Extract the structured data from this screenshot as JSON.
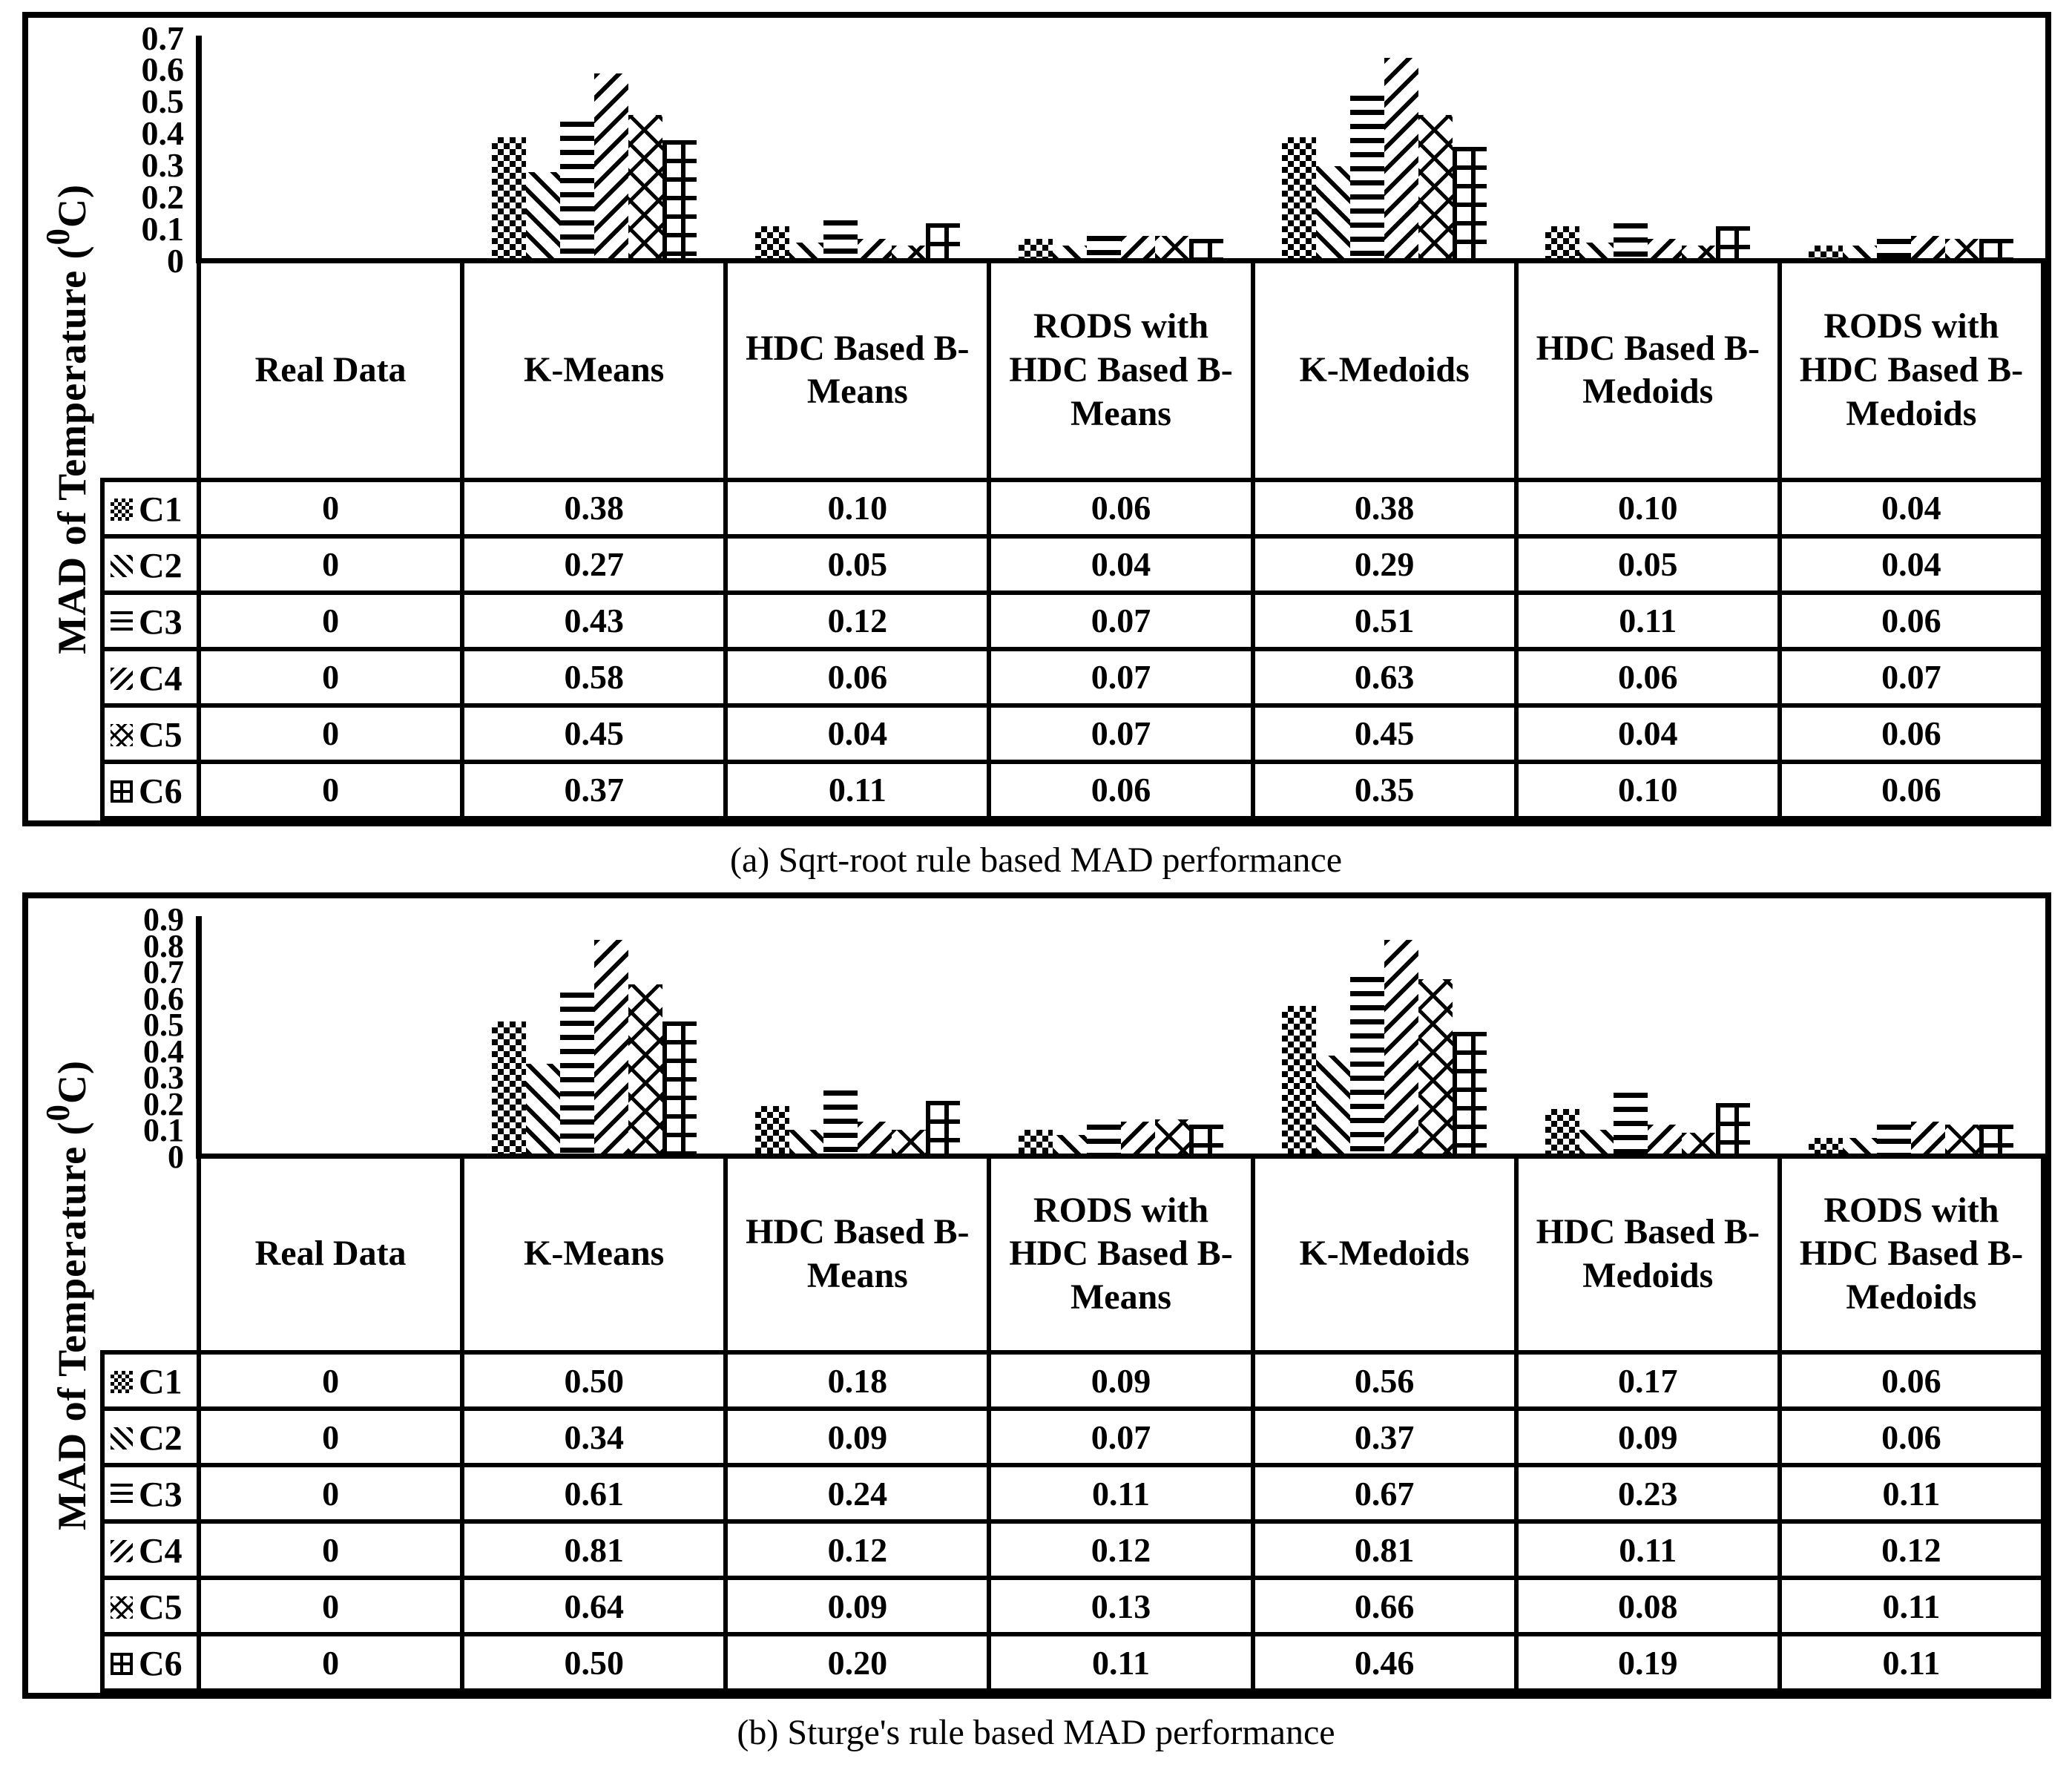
{
  "colors": {
    "ink": "#000000",
    "background": "#ffffff"
  },
  "chart_data": [
    {
      "id": "a",
      "type": "bar",
      "caption": "(a) Sqrt-root rule based MAD performance",
      "ylabel": {
        "pre": "MAD of Temperature (",
        "sup": "0",
        "post": "C)"
      },
      "ylim": [
        0,
        0.7
      ],
      "yticks": [
        "0.7",
        "0.6",
        "0.5",
        "0.4",
        "0.3",
        "0.2",
        "0.1",
        "0"
      ],
      "grid": false,
      "legend_position": "table-row-headers",
      "categories": [
        "Real Data",
        "K-Means",
        "HDC Based B-Means",
        "RODS with HDC Based B-Means",
        "K-Medoids",
        "HDC Based B-Medoids",
        "RODS with HDC Based B-Medoids"
      ],
      "series": [
        {
          "name": "C1",
          "pattern": "checkerboard",
          "values": [
            "0",
            "0.38",
            "0.10",
            "0.06",
            "0.38",
            "0.10",
            "0.04"
          ]
        },
        {
          "name": "C2",
          "pattern": "diagonal-down",
          "values": [
            "0",
            "0.27",
            "0.05",
            "0.04",
            "0.29",
            "0.05",
            "0.04"
          ]
        },
        {
          "name": "C3",
          "pattern": "horizontal-lines",
          "values": [
            "0",
            "0.43",
            "0.12",
            "0.07",
            "0.51",
            "0.11",
            "0.06"
          ]
        },
        {
          "name": "C4",
          "pattern": "diagonal-up",
          "values": [
            "0",
            "0.58",
            "0.06",
            "0.07",
            "0.63",
            "0.06",
            "0.07"
          ]
        },
        {
          "name": "C5",
          "pattern": "diamond-lattice",
          "values": [
            "0",
            "0.45",
            "0.04",
            "0.07",
            "0.45",
            "0.04",
            "0.06"
          ]
        },
        {
          "name": "C6",
          "pattern": "grid",
          "values": [
            "0",
            "0.37",
            "0.11",
            "0.06",
            "0.35",
            "0.10",
            "0.06"
          ]
        }
      ]
    },
    {
      "id": "b",
      "type": "bar",
      "caption": "(b) Sturge's rule based MAD performance",
      "ylabel": {
        "pre": "MAD of Temperature (",
        "sup": "0",
        "post": "C)"
      },
      "ylim": [
        0,
        0.9
      ],
      "yticks": [
        "0.9",
        "0.8",
        "0.7",
        "0.6",
        "0.5",
        "0.4",
        "0.3",
        "0.2",
        "0.1",
        "0"
      ],
      "grid": false,
      "legend_position": "table-row-headers",
      "categories": [
        "Real Data",
        "K-Means",
        "HDC Based B-Means",
        "RODS with HDC Based B-Means",
        "K-Medoids",
        "HDC Based B-Medoids",
        "RODS with HDC Based B-Medoids"
      ],
      "series": [
        {
          "name": "C1",
          "pattern": "checkerboard",
          "values": [
            "0",
            "0.50",
            "0.18",
            "0.09",
            "0.56",
            "0.17",
            "0.06"
          ]
        },
        {
          "name": "C2",
          "pattern": "diagonal-down",
          "values": [
            "0",
            "0.34",
            "0.09",
            "0.07",
            "0.37",
            "0.09",
            "0.06"
          ]
        },
        {
          "name": "C3",
          "pattern": "horizontal-lines",
          "values": [
            "0",
            "0.61",
            "0.24",
            "0.11",
            "0.67",
            "0.23",
            "0.11"
          ]
        },
        {
          "name": "C4",
          "pattern": "diagonal-up",
          "values": [
            "0",
            "0.81",
            "0.12",
            "0.12",
            "0.81",
            "0.11",
            "0.12"
          ]
        },
        {
          "name": "C5",
          "pattern": "diamond-lattice",
          "values": [
            "0",
            "0.64",
            "0.09",
            "0.13",
            "0.66",
            "0.08",
            "0.11"
          ]
        },
        {
          "name": "C6",
          "pattern": "grid",
          "values": [
            "0",
            "0.50",
            "0.20",
            "0.11",
            "0.46",
            "0.19",
            "0.11"
          ]
        }
      ]
    }
  ]
}
